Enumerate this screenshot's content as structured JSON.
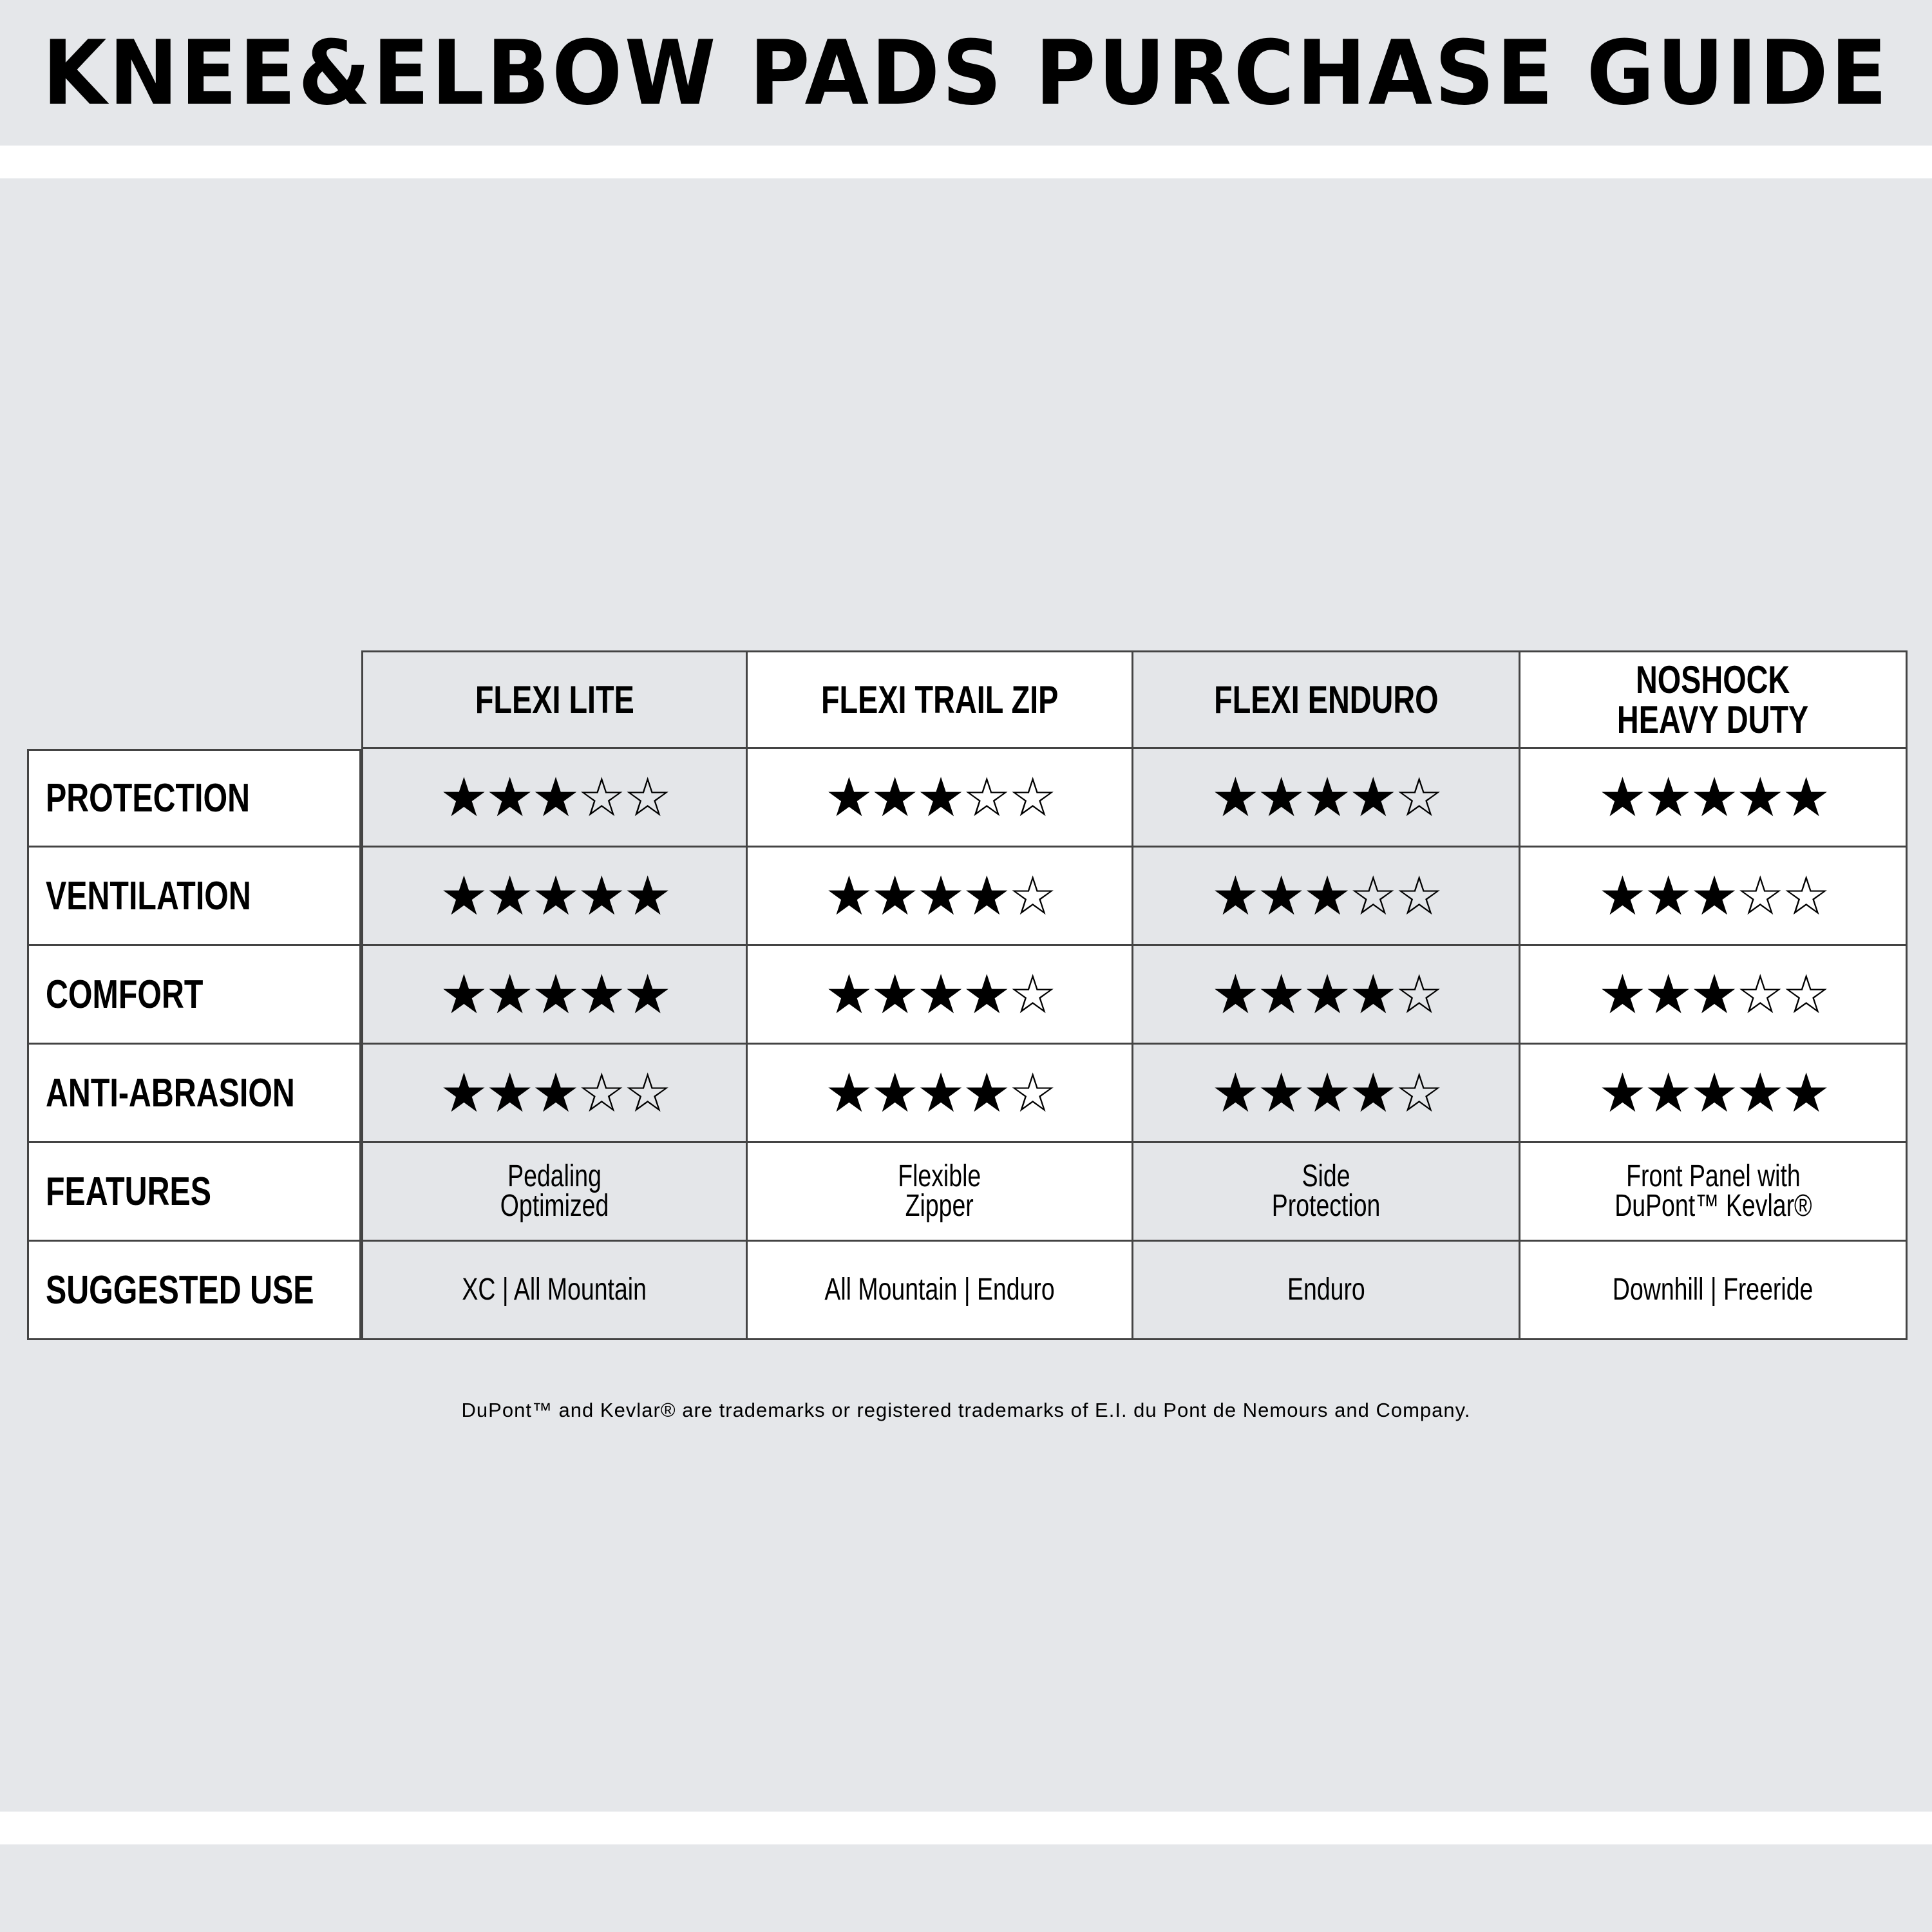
{
  "title": "KNEE&ELBOW PADS PURCHASE GUIDE",
  "products": [
    "FLEXI LITE",
    "FLEXI TRAIL ZIP",
    "FLEXI ENDURO",
    "NOSHOCK\nHEAVY DUTY"
  ],
  "rating_max": 5,
  "rows": [
    {
      "label": "PROTECTION",
      "ratings": [
        3,
        3,
        4,
        5
      ]
    },
    {
      "label": "VENTILATION",
      "ratings": [
        5,
        4,
        3,
        3
      ]
    },
    {
      "label": "COMFORT",
      "ratings": [
        5,
        4,
        4,
        3
      ]
    },
    {
      "label": "ANTI-ABRASION",
      "ratings": [
        3,
        4,
        4,
        5
      ]
    },
    {
      "label": "FEATURES",
      "values": [
        "Pedaling\nOptimized",
        "Flexible\nZipper",
        "Side\nProtection",
        "Front Panel with\nDuPont™ Kevlar®"
      ]
    },
    {
      "label": "SUGGESTED USE",
      "values": [
        "XC | All Mountain",
        "All Mountain | Enduro",
        "Enduro",
        "Downhill | Freeride"
      ]
    }
  ],
  "footnote": "DuPont™ and Kevlar® are trademarks or registered trademarks of E.I. du Pont de Nemours and Company.",
  "colors": {
    "background": "#e5e7ea",
    "cell_gray": "#e4e6e9",
    "cell_white": "#ffffff",
    "border": "#444444"
  }
}
